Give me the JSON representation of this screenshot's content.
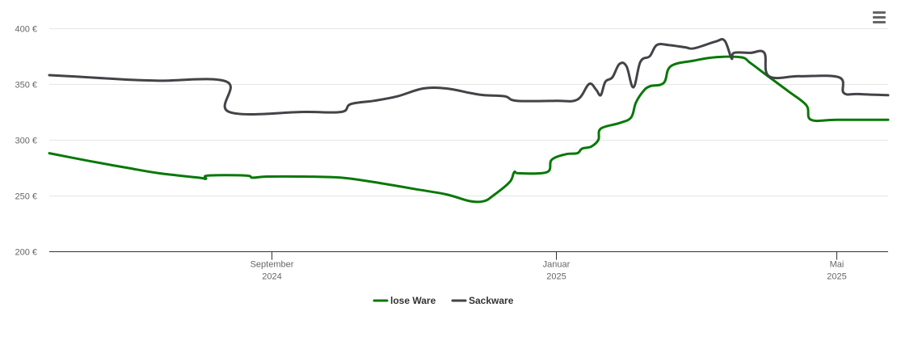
{
  "chart_data": {
    "type": "line",
    "title": "",
    "xlabel": "",
    "ylabel": "",
    "y_unit": "€",
    "ylim": [
      200,
      400
    ],
    "yticks": [
      "200 €",
      "250 €",
      "300 €",
      "350 €",
      "400 €"
    ],
    "ytick_values": [
      200,
      250,
      300,
      350,
      400
    ],
    "xlim": [
      "2024-05-29",
      "2025-05-23"
    ],
    "xticks": [
      {
        "date": "2024-09-01",
        "line1": "September",
        "line2": "2024"
      },
      {
        "date": "2025-01-01",
        "line1": "Januar",
        "line2": "2025"
      },
      {
        "date": "2025-05-01",
        "line1": "Mai",
        "line2": "2025"
      }
    ],
    "grid": true,
    "legend_position": "bottom",
    "series": [
      {
        "name": "lose Ware",
        "color": "#087808",
        "points": [
          [
            "2024-05-29",
            288
          ],
          [
            "2024-06-15",
            281
          ],
          [
            "2024-07-01",
            275
          ],
          [
            "2024-07-15",
            270
          ],
          [
            "2024-08-01",
            266
          ],
          [
            "2024-08-04",
            265
          ],
          [
            "2024-08-05",
            268
          ],
          [
            "2024-08-21",
            268
          ],
          [
            "2024-08-24",
            266
          ],
          [
            "2024-08-30",
            267
          ],
          [
            "2024-09-15",
            267
          ],
          [
            "2024-10-01",
            266
          ],
          [
            "2024-10-15",
            262
          ],
          [
            "2024-11-01",
            256
          ],
          [
            "2024-11-15",
            251
          ],
          [
            "2024-11-25",
            245
          ],
          [
            "2024-12-01",
            245
          ],
          [
            "2024-12-05",
            250
          ],
          [
            "2024-12-12",
            262
          ],
          [
            "2024-12-14",
            271
          ],
          [
            "2024-12-16",
            270
          ],
          [
            "2024-12-28",
            271
          ],
          [
            "2024-12-30",
            282
          ],
          [
            "2025-01-05",
            287
          ],
          [
            "2025-01-10",
            288
          ],
          [
            "2025-01-12",
            292
          ],
          [
            "2025-01-16",
            294
          ],
          [
            "2025-01-19",
            300
          ],
          [
            "2025-01-20",
            310
          ],
          [
            "2025-01-28",
            315
          ],
          [
            "2025-02-02",
            320
          ],
          [
            "2025-02-04",
            333
          ],
          [
            "2025-02-07",
            343
          ],
          [
            "2025-02-10",
            348
          ],
          [
            "2025-02-16",
            351
          ],
          [
            "2025-02-19",
            366
          ],
          [
            "2025-03-01",
            371
          ],
          [
            "2025-03-10",
            374
          ],
          [
            "2025-03-21",
            374
          ],
          [
            "2025-03-25",
            369
          ],
          [
            "2025-04-01",
            358
          ],
          [
            "2025-04-10",
            344
          ],
          [
            "2025-04-18",
            331
          ],
          [
            "2025-04-20",
            318
          ],
          [
            "2025-05-01",
            318
          ],
          [
            "2025-05-23",
            318
          ]
        ]
      },
      {
        "name": "Sackware",
        "color": "#434348",
        "points": [
          [
            "2024-05-29",
            358
          ],
          [
            "2024-06-15",
            356
          ],
          [
            "2024-07-01",
            354
          ],
          [
            "2024-07-15",
            353
          ],
          [
            "2024-08-13",
            352
          ],
          [
            "2024-08-14",
            325
          ],
          [
            "2024-09-15",
            325
          ],
          [
            "2024-10-01",
            325
          ],
          [
            "2024-10-05",
            332
          ],
          [
            "2024-10-15",
            335
          ],
          [
            "2024-10-25",
            339
          ],
          [
            "2024-11-05",
            346
          ],
          [
            "2024-11-15",
            346
          ],
          [
            "2024-11-25",
            342
          ],
          [
            "2024-12-01",
            340
          ],
          [
            "2024-12-10",
            339
          ],
          [
            "2024-12-15",
            335
          ],
          [
            "2025-01-01",
            335
          ],
          [
            "2025-01-10",
            336
          ],
          [
            "2025-01-15",
            350
          ],
          [
            "2025-01-18",
            345
          ],
          [
            "2025-01-20",
            340
          ],
          [
            "2025-01-22",
            352
          ],
          [
            "2025-01-25",
            356
          ],
          [
            "2025-01-28",
            368
          ],
          [
            "2025-01-31",
            366
          ],
          [
            "2025-02-03",
            347
          ],
          [
            "2025-02-06",
            370
          ],
          [
            "2025-02-10",
            375
          ],
          [
            "2025-02-13",
            385
          ],
          [
            "2025-02-18",
            385
          ],
          [
            "2025-02-25",
            383
          ],
          [
            "2025-03-01",
            382
          ],
          [
            "2025-03-10",
            388
          ],
          [
            "2025-03-14",
            389
          ],
          [
            "2025-03-17",
            373
          ],
          [
            "2025-03-18",
            378
          ],
          [
            "2025-03-25",
            378
          ],
          [
            "2025-03-31",
            378
          ],
          [
            "2025-04-02",
            357
          ],
          [
            "2025-04-15",
            357
          ],
          [
            "2025-05-02",
            356
          ],
          [
            "2025-05-04",
            342
          ],
          [
            "2025-05-10",
            341
          ],
          [
            "2025-05-23",
            340
          ]
        ]
      }
    ]
  },
  "ui": {
    "menu_icon": "hamburger-menu-icon"
  }
}
